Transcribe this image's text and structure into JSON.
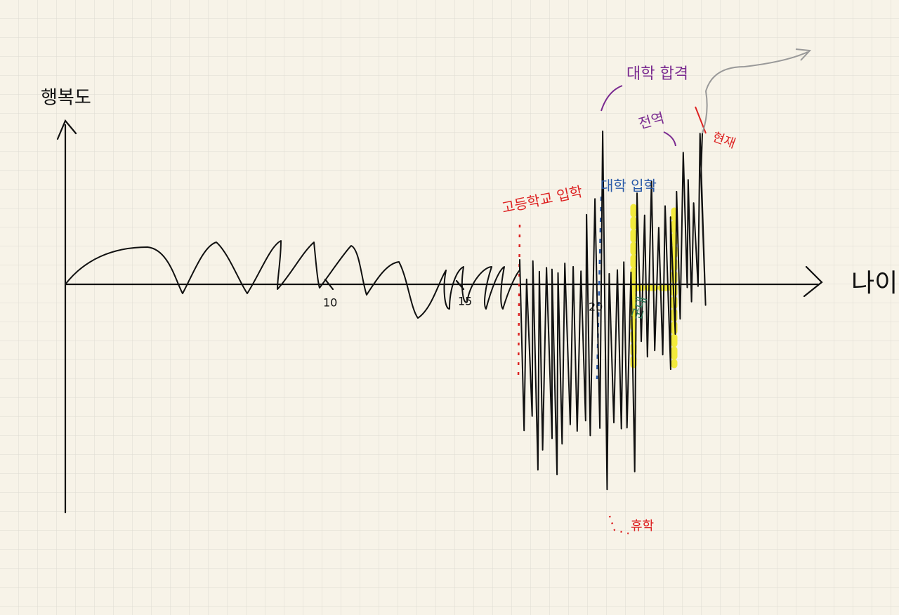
{
  "axes": {
    "y_label": "행복도",
    "x_label": "나이",
    "x_ticks": [
      "10",
      "15",
      "20"
    ]
  },
  "annotations": {
    "high_school": "고등학교 입학",
    "univ_entry": "대학 입학",
    "univ_admit": "대학 합격",
    "discharge": "전역",
    "now": "현재",
    "military": "군대",
    "leave": "휴학"
  }
}
